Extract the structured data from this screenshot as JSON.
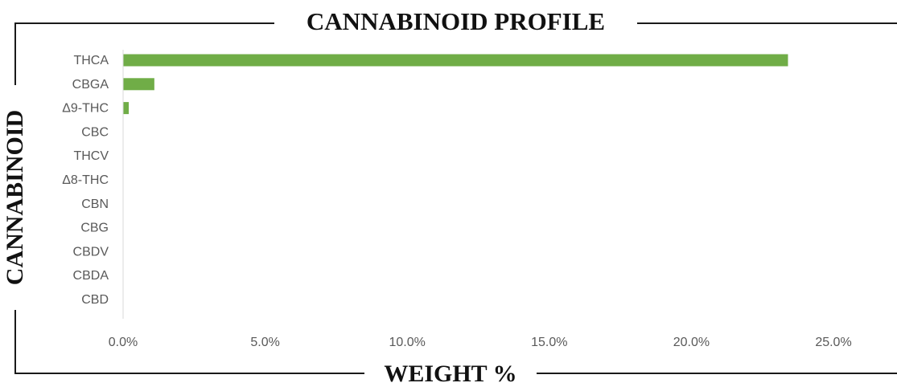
{
  "chart_data": {
    "type": "bar",
    "orientation": "horizontal",
    "title": "CANNABINOID PROFILE",
    "xlabel": "WEIGHT %",
    "ylabel": "CANNABINOID",
    "categories": [
      "THCA",
      "CBGA",
      "Δ9-THC",
      "CBC",
      "THCV",
      "Δ8-THC",
      "CBN",
      "CBG",
      "CBDV",
      "CBDA",
      "CBD"
    ],
    "values": [
      23.4,
      1.1,
      0.2,
      0,
      0,
      0,
      0,
      0,
      0,
      0,
      0
    ],
    "xlim": [
      0,
      25
    ],
    "x_ticks": [
      0,
      5,
      10,
      15,
      20,
      25
    ],
    "x_tick_labels": [
      "0.0%",
      "5.0%",
      "10.0%",
      "15.0%",
      "20.0%",
      "25.0%"
    ],
    "grid": false,
    "legend": "none",
    "bar_color": "#70ad47"
  }
}
